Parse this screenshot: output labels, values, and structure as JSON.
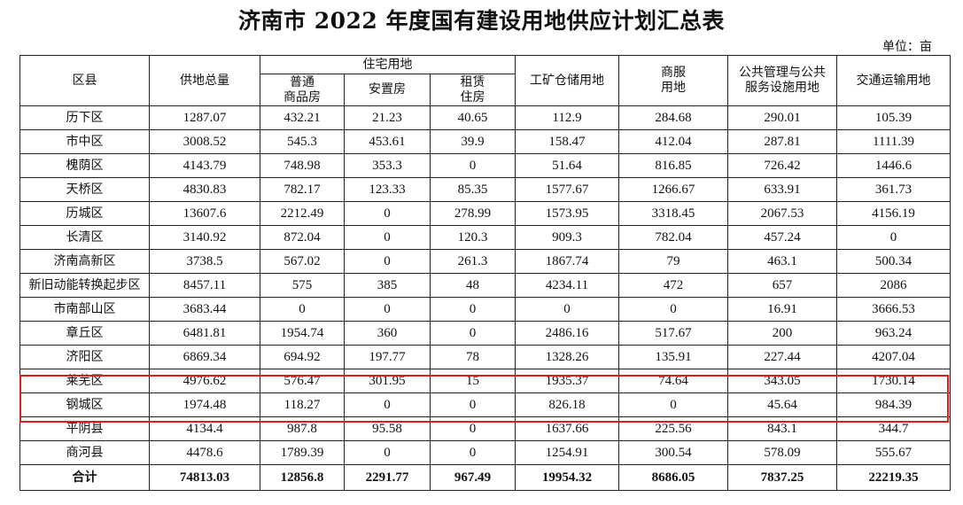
{
  "title": "济南市 2022 年度国有建设用地供应计划汇总表",
  "unit": "单位：亩",
  "headers": {
    "district": "区县",
    "total_supply": "供地总量",
    "residential": "住宅用地",
    "residential_sub": [
      "普通\n商品房",
      "安置房",
      "租赁\n住房"
    ],
    "industrial": "工矿仓储用地",
    "commercial": "商服\n用地",
    "public": "公共管理与公共\n服务设施用地",
    "transport": "交通运输用地"
  },
  "rows": [
    [
      "历下区",
      "1287.07",
      "432.21",
      "21.23",
      "40.65",
      "112.9",
      "284.68",
      "290.01",
      "105.39"
    ],
    [
      "市中区",
      "3008.52",
      "545.3",
      "453.61",
      "39.9",
      "158.47",
      "412.04",
      "287.81",
      "1111.39"
    ],
    [
      "槐荫区",
      "4143.79",
      "748.98",
      "353.3",
      "0",
      "51.64",
      "816.85",
      "726.42",
      "1446.6"
    ],
    [
      "天桥区",
      "4830.83",
      "782.17",
      "123.33",
      "85.35",
      "1577.67",
      "1266.67",
      "633.91",
      "361.73"
    ],
    [
      "历城区",
      "13607.6",
      "2212.49",
      "0",
      "278.99",
      "1573.95",
      "3318.45",
      "2067.53",
      "4156.19"
    ],
    [
      "长清区",
      "3140.92",
      "872.04",
      "0",
      "120.3",
      "909.3",
      "782.04",
      "457.24",
      "0"
    ],
    [
      "济南高新区",
      "3738.5",
      "567.02",
      "0",
      "261.3",
      "1867.74",
      "79",
      "463.1",
      "500.34"
    ],
    [
      "新旧动能转换起步区",
      "8457.11",
      "575",
      "385",
      "48",
      "4234.11",
      "472",
      "657",
      "2086"
    ],
    [
      "市南部山区",
      "3683.44",
      "0",
      "0",
      "0",
      "0",
      "0",
      "16.91",
      "3666.53"
    ],
    [
      "章丘区",
      "6481.81",
      "1954.74",
      "360",
      "0",
      "2486.16",
      "517.67",
      "200",
      "963.24"
    ],
    [
      "济阳区",
      "6869.34",
      "694.92",
      "197.77",
      "78",
      "1328.26",
      "135.91",
      "227.44",
      "4207.04"
    ],
    [
      "莱芜区",
      "4976.62",
      "576.47",
      "301.95",
      "15",
      "1935.37",
      "74.64",
      "343.05",
      "1730.14"
    ],
    [
      "钢城区",
      "1974.48",
      "118.27",
      "0",
      "0",
      "826.18",
      "0",
      "45.64",
      "984.39"
    ],
    [
      "平阴县",
      "4134.4",
      "987.8",
      "95.58",
      "0",
      "1637.66",
      "225.56",
      "843.1",
      "344.7"
    ],
    [
      "商河县",
      "4478.6",
      "1789.39",
      "0",
      "0",
      "1254.91",
      "300.54",
      "578.09",
      "555.67"
    ]
  ],
  "total": [
    "合计",
    "74813.03",
    "12856.8",
    "2291.77",
    "967.49",
    "19954.32",
    "8686.05",
    "7837.25",
    "22219.35"
  ],
  "highlight": {
    "rows": [
      "莱芜区",
      "钢城区"
    ],
    "color": "#e01b1b"
  }
}
